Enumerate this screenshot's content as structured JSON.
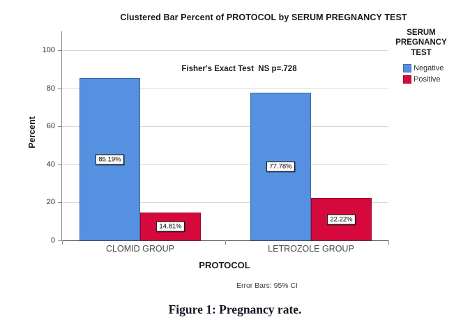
{
  "caption": "Figure 1: Pregnancy rate.",
  "chart_data": {
    "type": "bar",
    "title": "Clustered Bar Percent of PROTOCOL by SERUM PREGNANCY TEST",
    "annotation": "Fisher's Exact Test  NS p=.728",
    "xlabel": "PROTOCOL",
    "ylabel": "Percent",
    "ylim": [
      0,
      100
    ],
    "yticks": [
      0,
      20,
      40,
      60,
      80,
      100
    ],
    "grid": true,
    "legend_position": "right",
    "legend_title": "SERUM PREGNANCY TEST",
    "categories": [
      "CLOMID GROUP",
      "LETROZOLE GROUP"
    ],
    "series": [
      {
        "name": "Negative",
        "color": "#5591E0",
        "values": [
          85.19,
          77.78
        ],
        "labels": [
          "85.19%",
          "77.78%"
        ]
      },
      {
        "name": "Positive",
        "color": "#D6093C",
        "values": [
          14.81,
          22.22
        ],
        "labels": [
          "14.81%",
          "22.22%"
        ]
      }
    ],
    "footnote": "Error Bars: 95% CI"
  }
}
